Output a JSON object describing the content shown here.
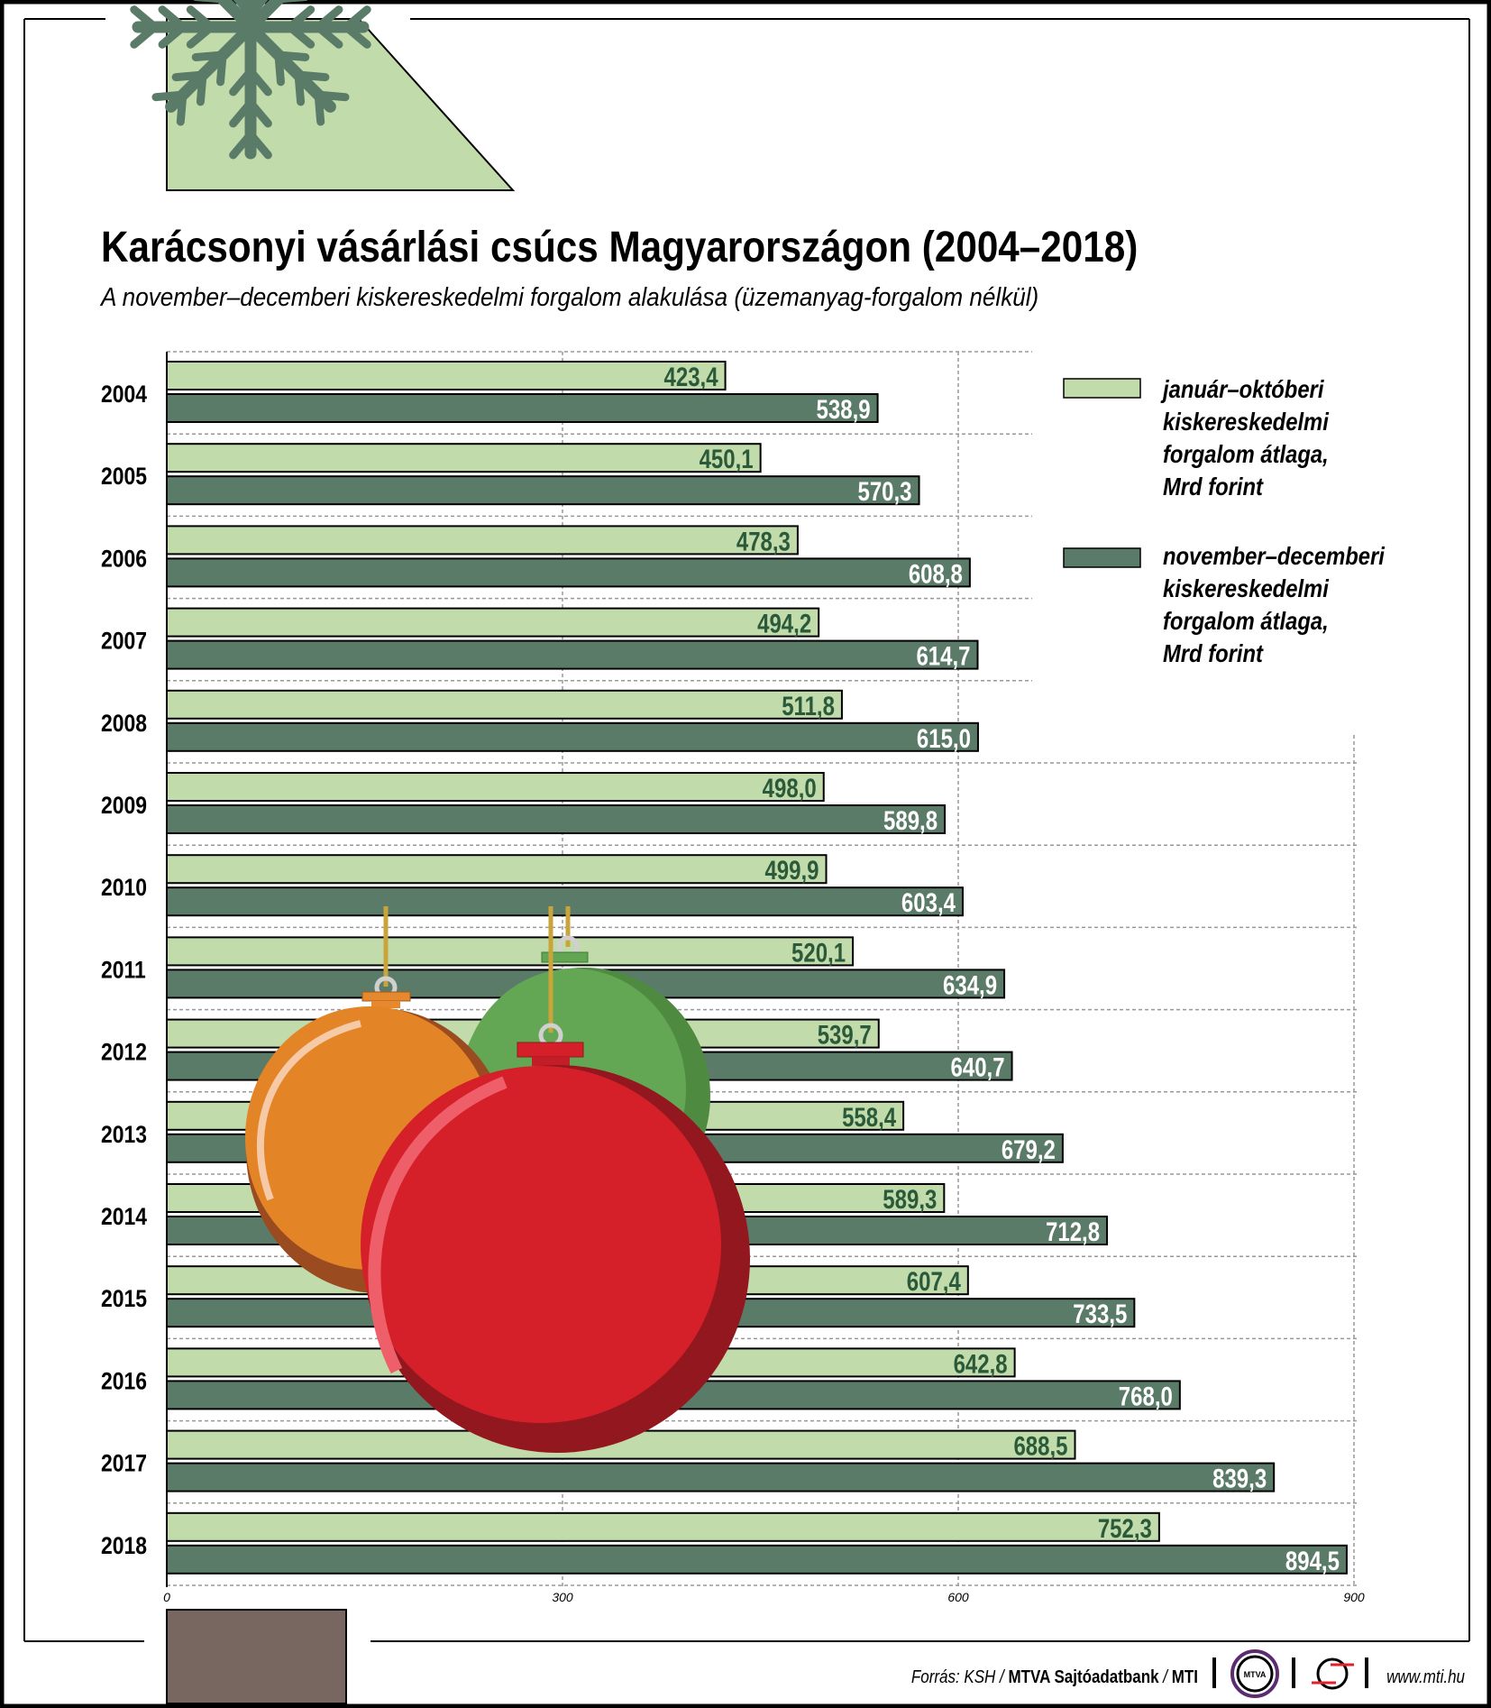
{
  "title": "Karácsonyi vásárlási csúcs Magyarországon (2004–2018)",
  "subtitle": "A november–decemberi kiskereskedelmi forgalom alakulása (üzemanyag-forgalom nélkül)",
  "colors": {
    "light": "#c2dbab",
    "dark": "#5b7b69",
    "label_dark": "#2b5a3a",
    "brown": "#786760"
  },
  "legend": {
    "light": [
      "január–októberi",
      "kiskereskedelmi",
      "forgalom átlaga,",
      "Mrd forint"
    ],
    "dark": [
      "november–decemberi",
      "kiskereskedelmi",
      "forgalom átlaga,",
      "Mrd forint"
    ]
  },
  "chart_data": {
    "type": "bar",
    "orientation": "horizontal",
    "categories": [
      "2004",
      "2005",
      "2006",
      "2007",
      "2008",
      "2009",
      "2010",
      "2011",
      "2012",
      "2013",
      "2014",
      "2015",
      "2016",
      "2017",
      "2018"
    ],
    "series": [
      {
        "name": "január–októberi kiskereskedelmi forgalom átlaga, Mrd forint",
        "values": [
          423.4,
          450.1,
          478.3,
          494.2,
          511.8,
          498.0,
          499.9,
          520.1,
          539.7,
          558.4,
          589.3,
          607.4,
          642.8,
          688.5,
          752.3
        ],
        "labels": [
          "423,4",
          "450,1",
          "478,3",
          "494,2",
          "511,8",
          "498,0",
          "499,9",
          "520,1",
          "539,7",
          "558,4",
          "589,3",
          "607,4",
          "642,8",
          "688,5",
          "752,3"
        ]
      },
      {
        "name": "november–decemberi kiskereskedelmi forgalom átlaga, Mrd forint",
        "values": [
          538.9,
          570.3,
          608.8,
          614.7,
          615.0,
          589.8,
          603.4,
          634.9,
          640.7,
          679.2,
          712.8,
          733.5,
          768.0,
          839.3,
          894.5
        ],
        "labels": [
          "538,9",
          "570,3",
          "608,8",
          "614,7",
          "615,0",
          "589,8",
          "603,4",
          "634,9",
          "640,7",
          "679,2",
          "712,8",
          "733,5",
          "768,0",
          "839,3",
          "894,5"
        ]
      }
    ],
    "xlim": [
      0,
      900
    ],
    "xticks": [
      "0",
      "300",
      "600",
      "900"
    ],
    "grid": true,
    "legend_position": "right"
  },
  "footer": {
    "source_prefix": "Forrás: KSH / ",
    "source_bold1": "MTVA Sajtóadatbank",
    "source_sep": " / ",
    "source_bold2": "MTI",
    "mtva_logo": "MTVA",
    "url": "www.mti.hu"
  }
}
